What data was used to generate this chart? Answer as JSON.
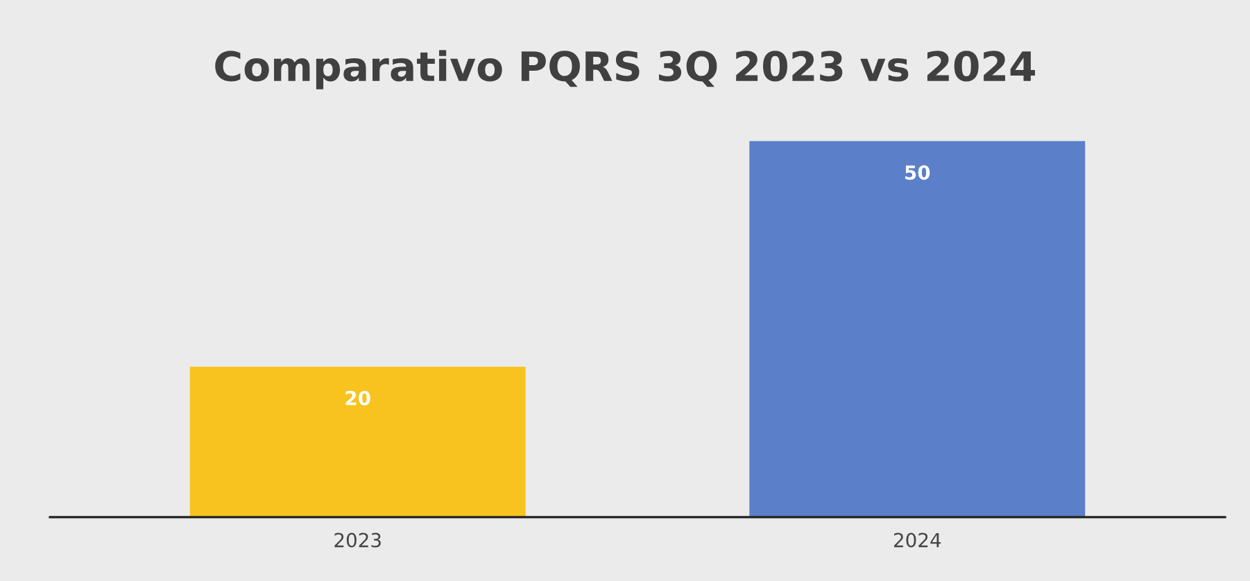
{
  "chart_data": {
    "type": "bar",
    "title": "Comparativo PQRS 3Q 2023 vs 2024",
    "categories": [
      "2023",
      "2024"
    ],
    "values": [
      20,
      50
    ],
    "colors": [
      "#f9c31f",
      "#5b80c9"
    ],
    "data_labels": true,
    "tick_labels": "x",
    "grid": false,
    "legend": false
  }
}
